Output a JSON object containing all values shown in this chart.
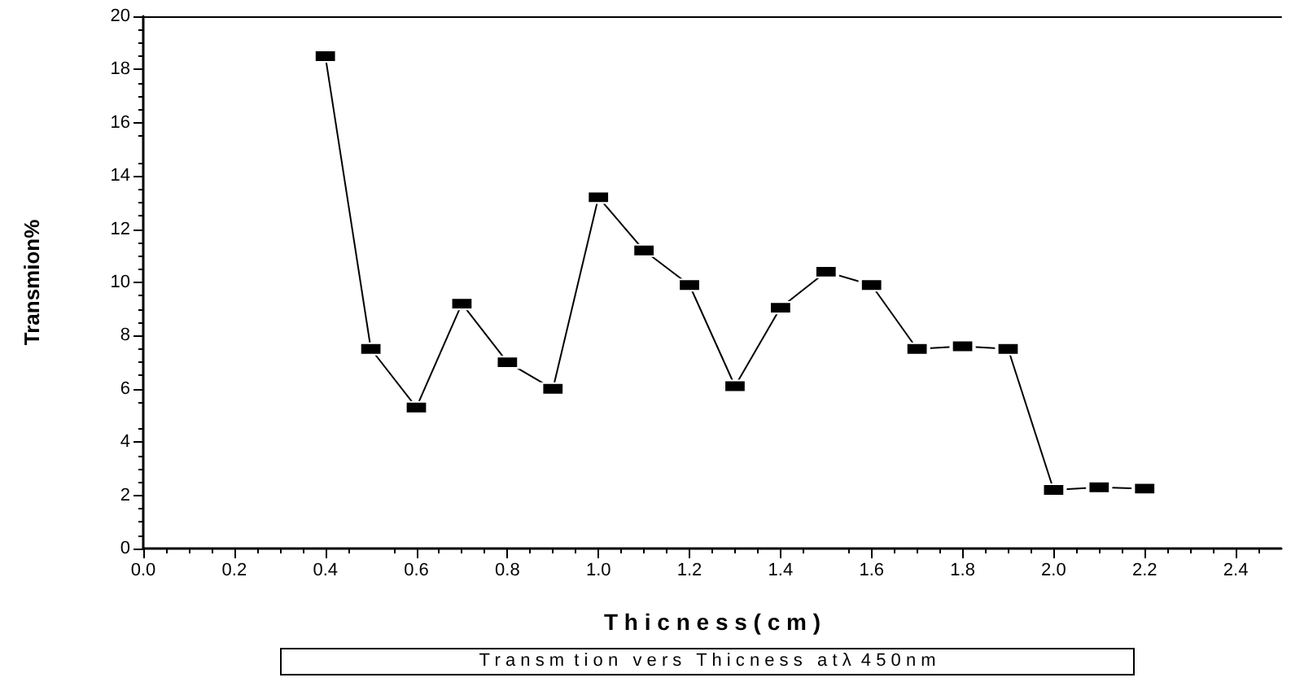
{
  "chart_data": {
    "type": "line",
    "xlabel": "T h i c n e s s ( c m )",
    "ylabel": "Transmion%",
    "annotations": [
      "T r a n s m  t i o n   v e r s   T h i c n e s s   a t λ  4 5 0 n m"
    ],
    "x": [
      0.4,
      0.5,
      0.6,
      0.7,
      0.8,
      0.9,
      1.0,
      1.1,
      1.2,
      1.3,
      1.4,
      1.5,
      1.6,
      1.7,
      1.8,
      1.9,
      2.0,
      2.1,
      2.2
    ],
    "series": [
      {
        "color": "#000000",
        "values": [
          18.5,
          7.5,
          5.3,
          9.2,
          7.0,
          6.0,
          13.2,
          11.2,
          9.9,
          6.1,
          9.05,
          10.4,
          9.9,
          7.5,
          7.6,
          7.5,
          2.2,
          2.3,
          2.25
        ]
      }
    ],
    "xlim": [
      0,
      2.5
    ],
    "xticks": [
      {
        "value": 0,
        "label": "0.0"
      },
      {
        "value": 0.2,
        "label": "0.2"
      },
      {
        "value": 0.4,
        "label": "0.4"
      },
      {
        "value": 0.6,
        "label": "0.6"
      },
      {
        "value": 0.8,
        "label": "0.8"
      },
      {
        "value": 1.0,
        "label": "1.0"
      },
      {
        "value": 1.2,
        "label": "1.2"
      },
      {
        "value": 1.4,
        "label": "1.4"
      },
      {
        "value": 1.6,
        "label": "1.6"
      },
      {
        "value": 1.8,
        "label": "1.8"
      },
      {
        "value": 2.0,
        "label": "2.0"
      },
      {
        "value": 2.2,
        "label": "2.2"
      },
      {
        "value": 2.4,
        "label": "2.4"
      }
    ],
    "ylim": [
      0,
      20
    ],
    "yticks": [
      0,
      2,
      4,
      6,
      8,
      10,
      12,
      14,
      16,
      18,
      20
    ],
    "grid": false,
    "marker": "square",
    "line_style": "solid"
  }
}
